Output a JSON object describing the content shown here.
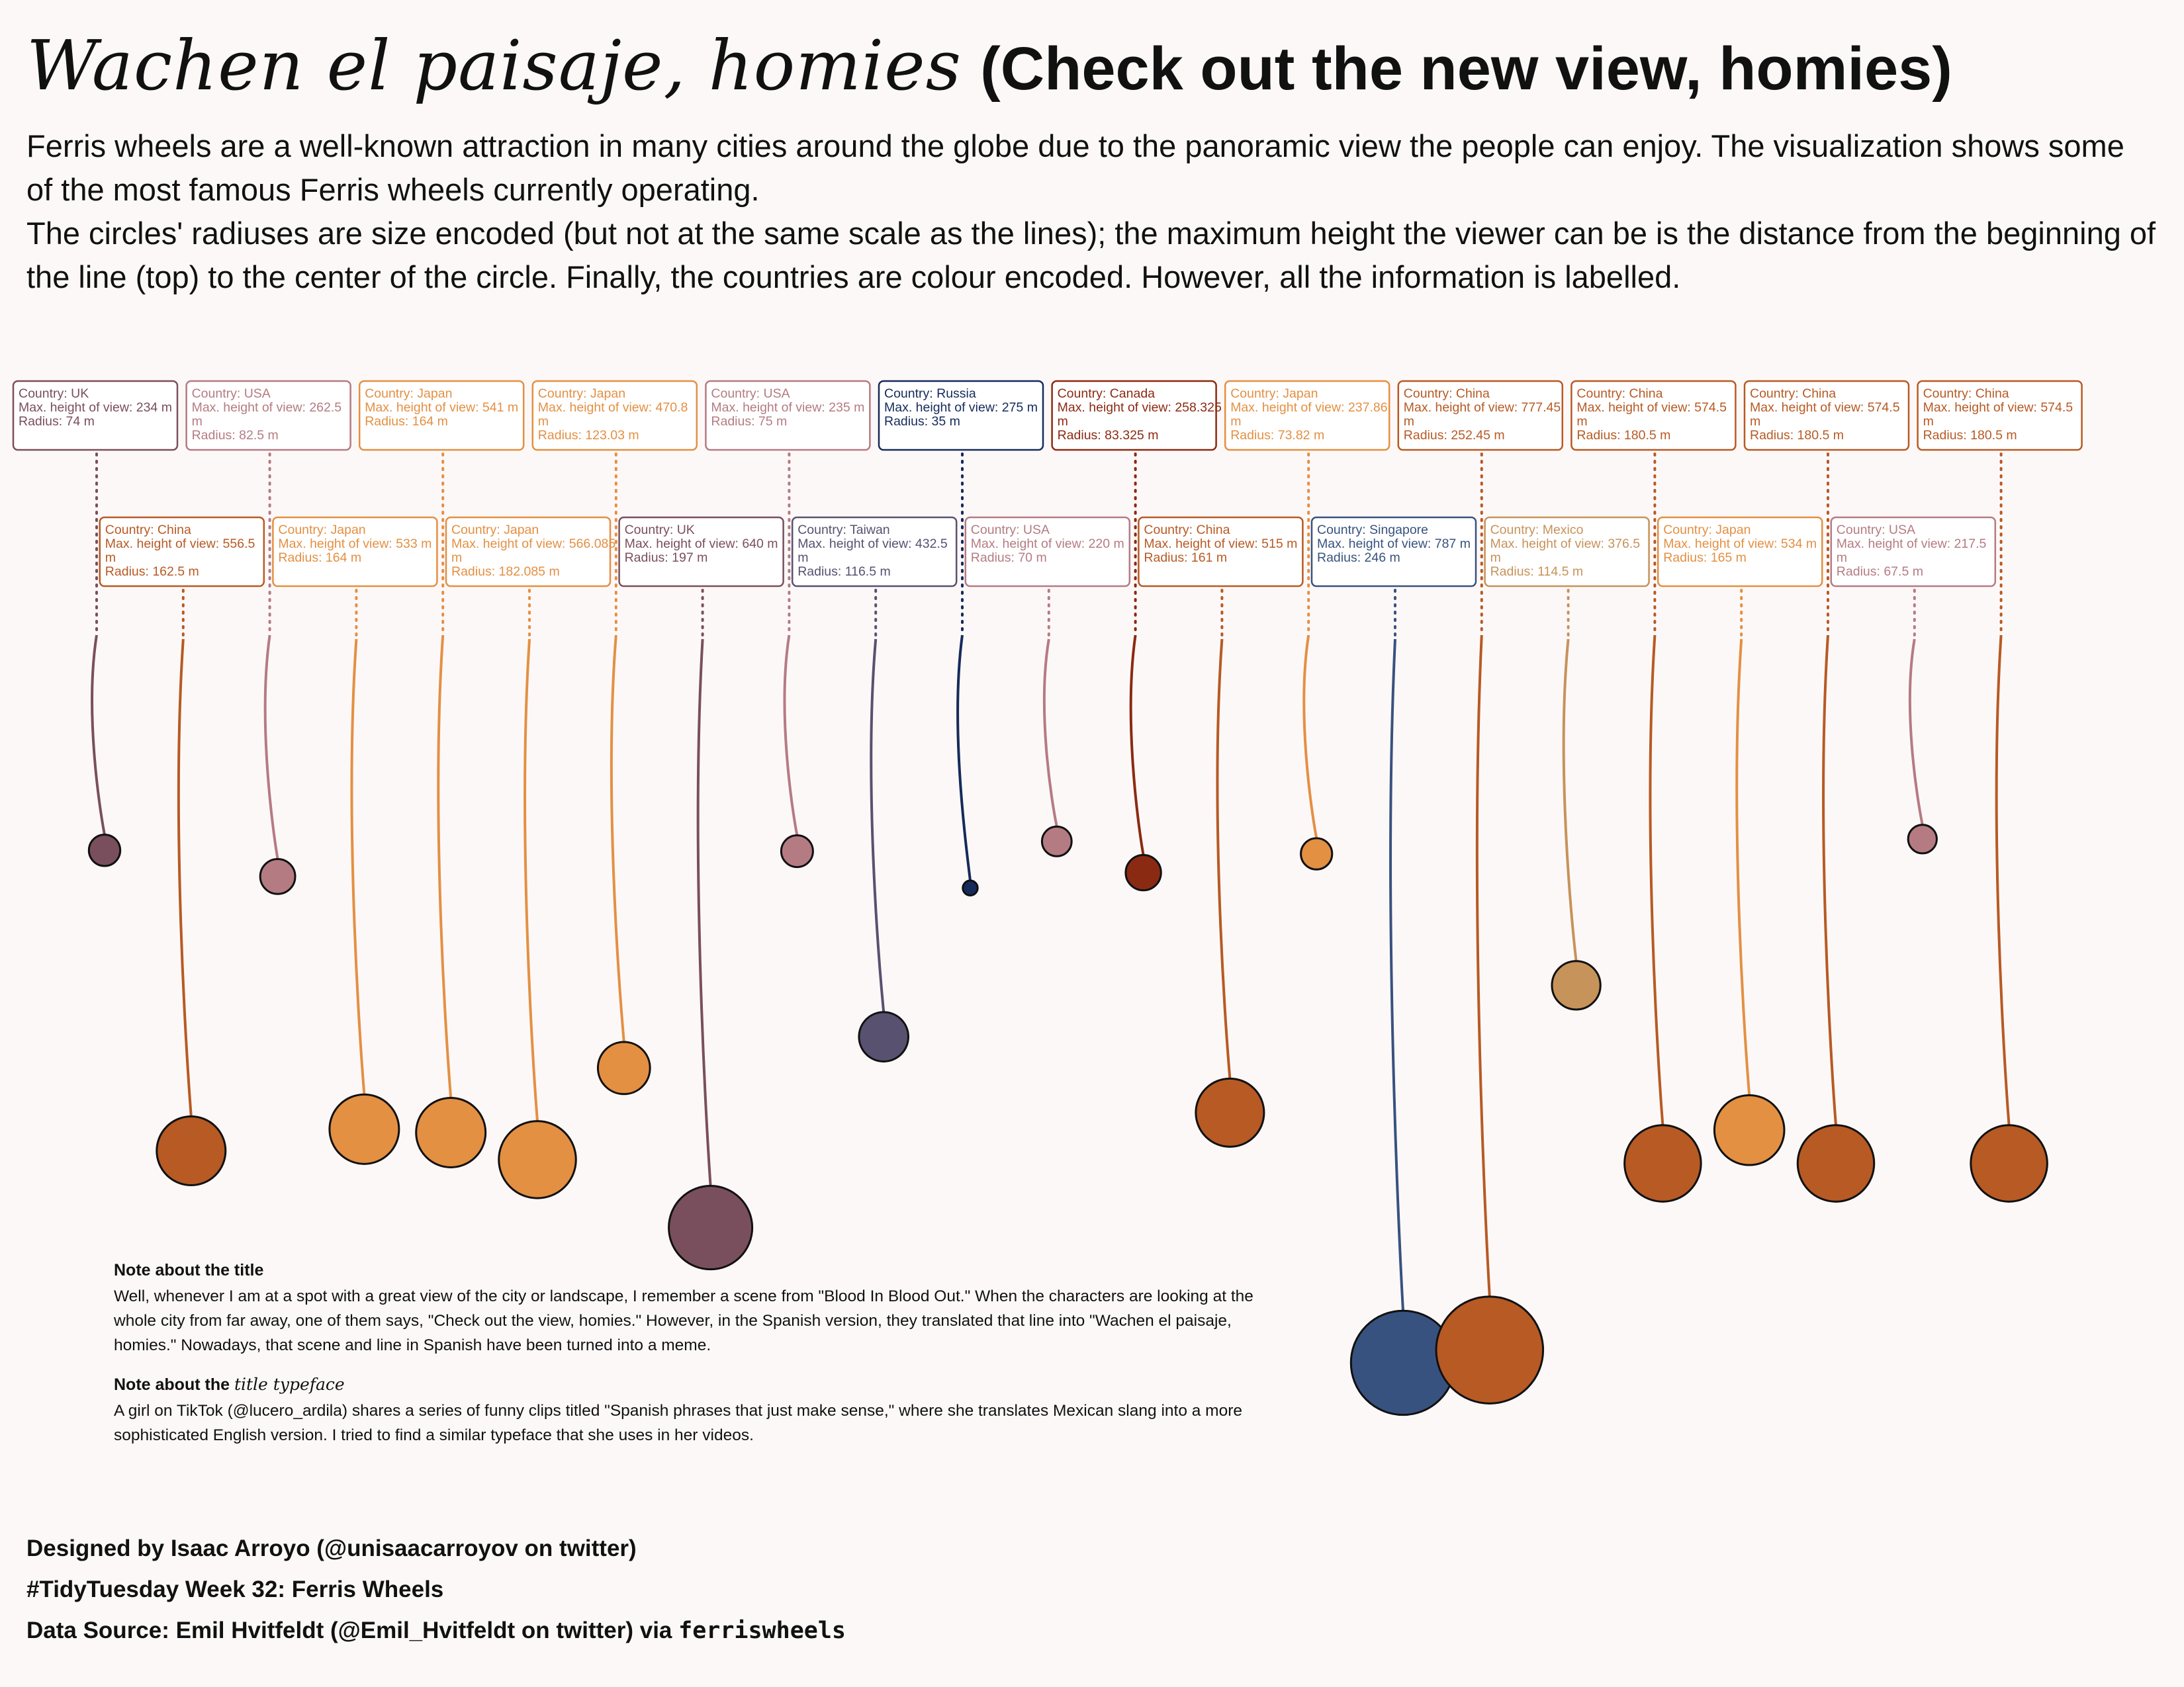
{
  "header": {
    "title_es": "Wachen el paisaje, homies",
    "title_en": "(Check out the new view, homies)",
    "description_1": "Ferris wheels are a well-known attraction in many cities around the globe due to the panoramic view the people can enjoy. The visualization shows some of the most famous Ferris wheels currently operating.",
    "description_2": "The circles' radiuses are size encoded (but not at the same scale as the lines); the maximum height the viewer can be is the distance from the beginning of the line (top) to the center of the circle. Finally, the countries are colour encoded. However, all the information is labelled."
  },
  "notes": {
    "note1_heading": "Note about the title",
    "note1_text": "Well, whenever I am at a spot with a great view of the city or landscape, I remember a scene from \"Blood In Blood Out.\" When the characters are looking at the whole city from far away, one of them says, \"Check out the view, homies.\" However, in the Spanish version, they translated that line into \"Wachen el paisaje, homies.\" Nowadays, that scene and line in Spanish have been turned into a meme.",
    "note2_heading_prefix": "Note about the",
    "note2_heading_italic": "title typeface",
    "note2_text": "A girl on TikTok (@lucero_ardila) shares a series of funny clips titled \"Spanish phrases that just make sense,\" where she translates Mexican slang into a more sophisticated English version. I tried to find a similar typeface that she uses in her videos."
  },
  "credits": {
    "designed_by": "Designed by Isaac Arroyo (@unisaacarroyov on twitter)",
    "tidytuesday": "#TidyTuesday Week 32: Ferris Wheels",
    "source_prefix": "Data Source: Emil Hvitfeldt (@Emil_Hvitfeldt on twitter) via",
    "source_package": "ferriswheels"
  },
  "chart_data": {
    "type": "scatter",
    "label_texts": {
      "country_prefix": "Country: ",
      "height_prefix": "Max. height of view: ",
      "radius_prefix": "Radius: ",
      "unit": "m"
    },
    "country_colors": {
      "UK": "#7a4f5d",
      "USA": "#b57b83",
      "Japan": "#e39043",
      "China": "#b75a24",
      "Russia": "#152b5b",
      "Canada": "#8b2a12",
      "Taiwan": "#585170",
      "Singapore": "#38527f",
      "Mexico": "#c6935a"
    },
    "wheels": [
      {
        "country": "UK",
        "height": "234",
        "radius": "74"
      },
      {
        "country": "China",
        "height": "556.5",
        "radius": "162.5"
      },
      {
        "country": "USA",
        "height": "262.5",
        "radius": "82.5"
      },
      {
        "country": "Japan",
        "height": "533",
        "radius": "164"
      },
      {
        "country": "Japan",
        "height": "541",
        "radius": "164"
      },
      {
        "country": "Japan",
        "height": "566.085",
        "radius": "182.085"
      },
      {
        "country": "Japan",
        "height": "470.8",
        "radius": "123.03"
      },
      {
        "country": "UK",
        "height": "640",
        "radius": "197"
      },
      {
        "country": "USA",
        "height": "235",
        "radius": "75"
      },
      {
        "country": "Taiwan",
        "height": "432.5",
        "radius": "116.5"
      },
      {
        "country": "Russia",
        "height": "275",
        "radius": "35"
      },
      {
        "country": "USA",
        "height": "220",
        "radius": "70"
      },
      {
        "country": "Canada",
        "height": "258.325",
        "radius": "83.325"
      },
      {
        "country": "China",
        "height": "515",
        "radius": "161"
      },
      {
        "country": "Japan",
        "height": "237.86",
        "radius": "73.82"
      },
      {
        "country": "Singapore",
        "height": "787",
        "radius": "246"
      },
      {
        "country": "China",
        "height": "777.45",
        "radius": "252.45"
      },
      {
        "country": "Mexico",
        "height": "376.5",
        "radius": "114.5"
      },
      {
        "country": "China",
        "height": "574.5",
        "radius": "180.5"
      },
      {
        "country": "Japan",
        "height": "534",
        "radius": "165"
      },
      {
        "country": "China",
        "height": "574.5",
        "radius": "180.5"
      },
      {
        "country": "USA",
        "height": "217.5",
        "radius": "67.5"
      },
      {
        "country": "China",
        "height": "574.5",
        "radius": "180.5"
      }
    ]
  }
}
